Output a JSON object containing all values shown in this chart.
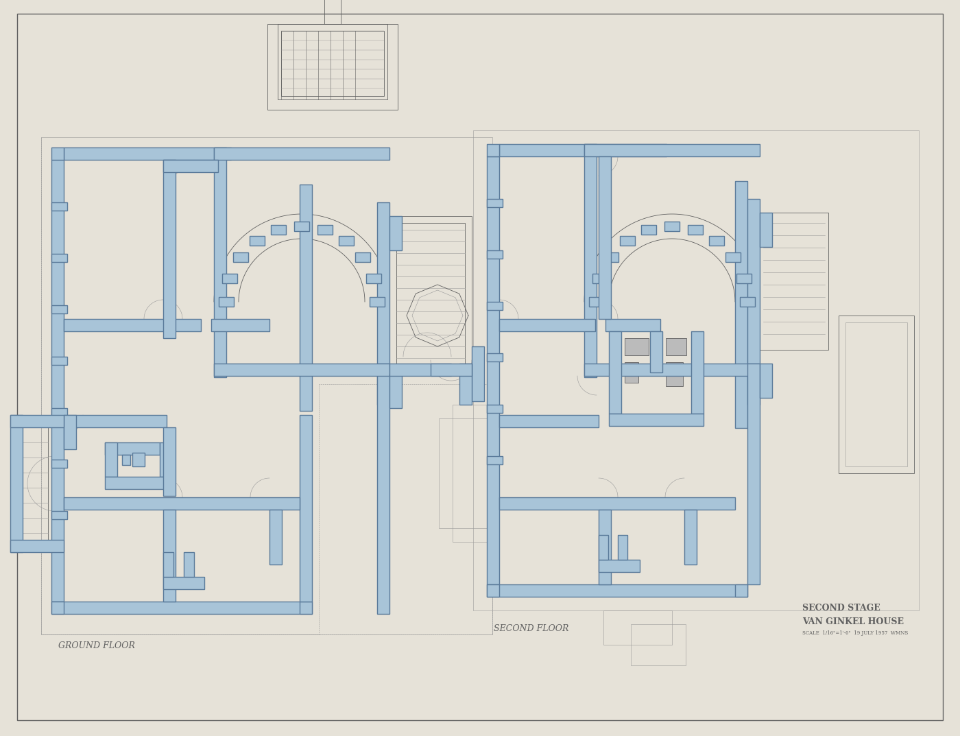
{
  "paper_color": "#e6e2d8",
  "wall_blue_fill": "#a8c4d8",
  "wall_outline": "#5a7a9a",
  "pencil_dark": "#606060",
  "pencil_lt": "#999999",
  "pencil_vlt": "#bbbbbb",
  "label_ground": "GROUND FLOOR",
  "label_second": "SECOND FLOOR",
  "label_stage": "SECOND STAGE",
  "label_house": "VAN GINKEL HOUSE",
  "label_scale": "SCALE  1/16\"=1'-0\"  19 JULY 1957  WMNS"
}
